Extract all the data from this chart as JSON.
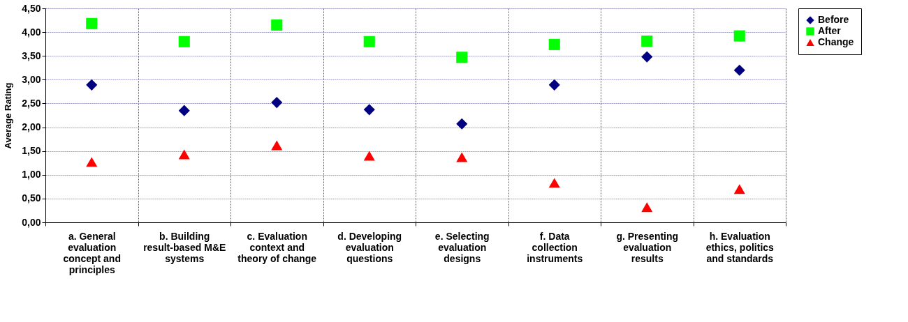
{
  "chart_data": {
    "type": "scatter",
    "ylabel": "Average Rating",
    "categories": [
      "a. General evaluation concept and principles",
      "b. Building result-based M&E systems",
      "c. Evaluation context and theory of change",
      "d. Developing evaluation questions",
      "e. Selecting evaluation designs",
      "f. Data collection instruments",
      "g. Presenting evaluation results",
      "h. Evaluation ethics, politics and standards"
    ],
    "series": [
      {
        "name": "Before",
        "color": "#000080",
        "marker": "diamond",
        "values": [
          2.89,
          2.35,
          2.52,
          2.37,
          2.07,
          2.89,
          3.48,
          3.2
        ]
      },
      {
        "name": "After",
        "color": "#00ff00",
        "marker": "square",
        "values": [
          4.18,
          3.8,
          4.15,
          3.8,
          3.47,
          3.74,
          3.81,
          3.92
        ]
      },
      {
        "name": "Change",
        "color": "#ff0000",
        "marker": "triangle",
        "values": [
          1.27,
          1.43,
          1.62,
          1.4,
          1.37,
          0.83,
          0.32,
          0.7
        ]
      }
    ],
    "ylim": [
      0,
      4.5
    ],
    "yticks": [
      {
        "value": 0,
        "label": "0,00"
      },
      {
        "value": 0.5,
        "label": "0,50"
      },
      {
        "value": 1,
        "label": "1,00"
      },
      {
        "value": 1.5,
        "label": "1,50"
      },
      {
        "value": 2,
        "label": "2,00"
      },
      {
        "value": 2.5,
        "label": "2,50"
      },
      {
        "value": 3,
        "label": "3,00"
      },
      {
        "value": 3.5,
        "label": "3,50"
      },
      {
        "value": 4,
        "label": "4,00"
      },
      {
        "value": 4.5,
        "label": "4,50"
      }
    ],
    "grid": true,
    "legend": "right"
  }
}
